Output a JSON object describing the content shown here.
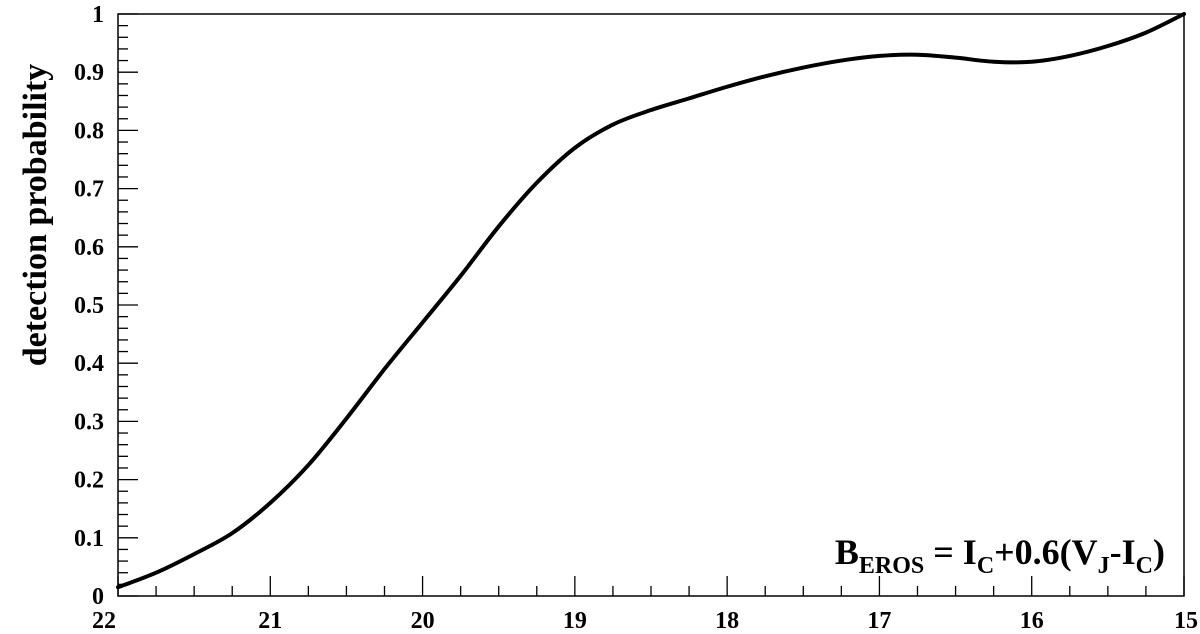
{
  "chart_data": {
    "type": "line",
    "title": "",
    "xlabel": "",
    "ylabel": "detection probability",
    "xlim": [
      22,
      15
    ],
    "ylim": [
      0,
      1
    ],
    "x_reversed": true,
    "grid": false,
    "x_ticks": [
      22,
      21,
      20,
      19,
      18,
      17,
      16,
      15
    ],
    "y_ticks": [
      0,
      0.1,
      0.2,
      0.3,
      0.4,
      0.5,
      0.6,
      0.7,
      0.8,
      0.9,
      1
    ],
    "y_tick_labels": [
      "0",
      "0.1",
      "0.2",
      "0.3",
      "0.4",
      "0.5",
      "0.6",
      "0.7",
      "0.8",
      "0.9",
      "1"
    ],
    "annotation": {
      "parts": [
        {
          "text": "B",
          "sub": "EROS"
        },
        {
          "text": " = I",
          "sub": "C"
        },
        {
          "text": "+0.6(V",
          "sub": "J"
        },
        {
          "text": "-I",
          "sub": "C"
        },
        {
          "text": ")"
        }
      ]
    },
    "series": [
      {
        "x": [
          22.0,
          21.75,
          21.5,
          21.25,
          21.0,
          20.75,
          20.5,
          20.25,
          20.0,
          19.75,
          19.5,
          19.25,
          19.0,
          18.75,
          18.5,
          18.25,
          18.0,
          17.75,
          17.5,
          17.25,
          17.0,
          16.75,
          16.5,
          16.25,
          16.0,
          15.75,
          15.5,
          15.25,
          15.0
        ],
        "y": [
          0.015,
          0.04,
          0.072,
          0.108,
          0.16,
          0.225,
          0.305,
          0.39,
          0.47,
          0.55,
          0.635,
          0.71,
          0.77,
          0.81,
          0.835,
          0.855,
          0.875,
          0.893,
          0.908,
          0.92,
          0.928,
          0.93,
          0.925,
          0.918,
          0.918,
          0.928,
          0.945,
          0.968,
          1.0
        ]
      }
    ]
  }
}
